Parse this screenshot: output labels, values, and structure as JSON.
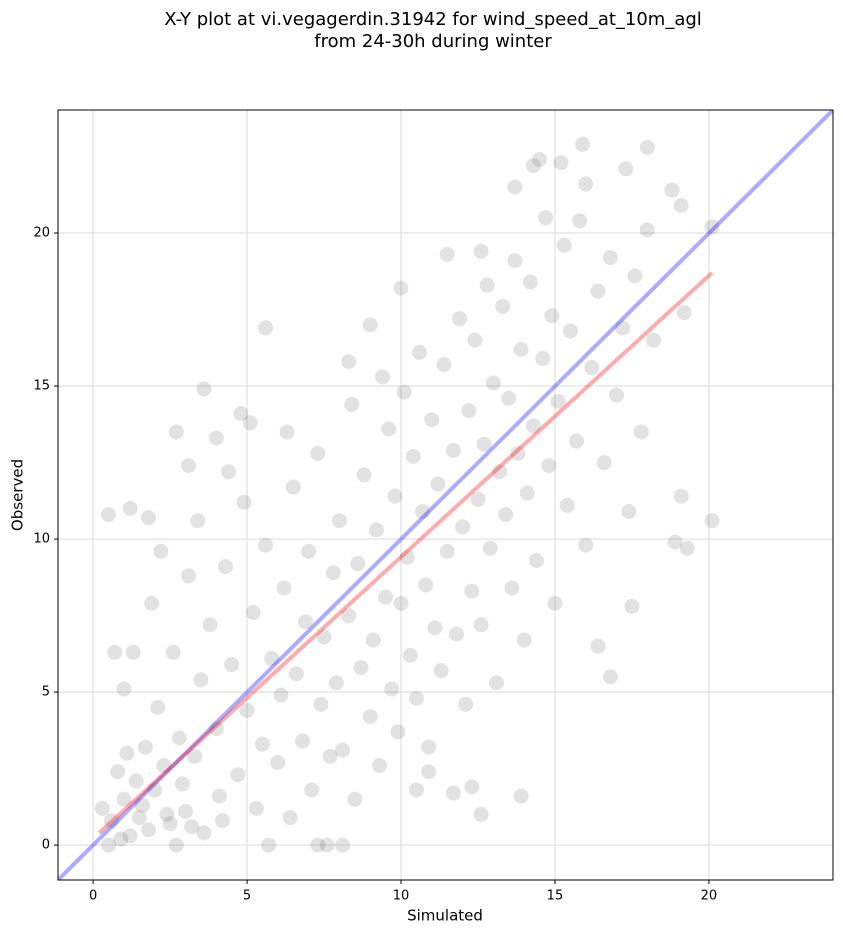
{
  "chart_data": {
    "type": "scatter",
    "title": [
      "X-Y plot at vi.vegagerdin.31942 for wind_speed_at_10m_agl",
      "from 24-30h during winter"
    ],
    "xlabel": "Simulated",
    "ylabel": "Observed",
    "xlim": [
      -1.14,
      24.03
    ],
    "ylim": [
      -1.14,
      24.02
    ],
    "xticks": [
      0,
      5,
      10,
      15,
      20
    ],
    "yticks": [
      0,
      5,
      10,
      15,
      20
    ],
    "grid": true,
    "color": "#555555",
    "x": [
      0.5,
      1.2,
      1.8,
      2.7,
      3.1,
      3.6,
      4,
      4.8,
      5.1,
      5.6,
      6.3,
      8.3,
      9,
      10,
      11.5,
      12.6,
      13.7,
      14.3,
      14.5,
      15.2,
      15.9,
      16,
      17.3,
      18,
      18.8,
      19.1,
      20.1,
      19.2,
      19.1,
      18.9,
      19.3,
      20.1,
      17.5,
      16.8,
      16.4,
      13.9,
      12.6,
      12.3,
      10.9,
      11.7,
      7.3,
      7.6,
      8.1,
      5.7,
      0.5,
      2.7,
      10.5,
      0.3,
      0.6,
      0.8,
      1,
      1.2,
      1.4,
      1.5,
      1.7,
      1.8,
      2,
      2.1,
      2.3,
      2.5,
      2.6,
      2.8,
      3,
      3.1,
      3.3,
      3.5,
      3.6,
      3.8,
      4,
      4.1,
      4.3,
      4.5,
      4.7,
      4.9,
      5,
      5.2,
      5.3,
      5.5,
      5.6,
      5.8,
      6,
      6.1,
      6.2,
      6.4,
      6.5,
      6.6,
      6.8,
      6.9,
      7,
      7.1,
      7.3,
      7.4,
      7.5,
      7.7,
      7.8,
      7.9,
      8,
      8.1,
      8.3,
      8.4,
      8.5,
      8.6,
      8.7,
      8.8,
      9,
      9.1,
      9.2,
      9.3,
      9.4,
      9.5,
      9.6,
      9.7,
      9.8,
      9.9,
      10,
      10.1,
      10.2,
      10.3,
      10.4,
      10.5,
      10.6,
      10.7,
      10.8,
      10.9,
      11,
      11.1,
      11.2,
      11.3,
      11.4,
      11.5,
      11.7,
      11.8,
      11.9,
      12,
      12.1,
      12.2,
      12.3,
      12.4,
      12.5,
      12.6,
      12.7,
      12.8,
      12.9,
      13,
      13.1,
      13.2,
      13.3,
      13.4,
      13.5,
      13.6,
      13.7,
      13.8,
      13.9,
      14,
      14.1,
      14.2,
      14.3,
      14.4,
      14.6,
      14.7,
      14.8,
      14.9,
      15,
      15.1,
      15.3,
      15.4,
      15.5,
      15.7,
      15.8,
      16,
      16.2,
      16.4,
      16.6,
      16.8,
      17,
      17.2,
      17.4,
      17.6,
      17.8,
      18,
      18.2,
      2.2,
      1.9,
      3.4,
      1,
      0.7,
      1.3,
      4.4,
      0.9,
      1.6,
      2.4,
      3.2,
      4.2,
      1.1,
      2.9
    ],
    "y": [
      10.8,
      11,
      10.7,
      13.5,
      12.4,
      14.9,
      13.3,
      14.1,
      13.8,
      16.9,
      13.5,
      15.8,
      17,
      18.2,
      19.3,
      19.4,
      21.5,
      22.2,
      22.4,
      22.3,
      22.9,
      21.6,
      22.1,
      22.8,
      21.4,
      20.9,
      20.2,
      17.4,
      11.4,
      9.9,
      9.7,
      10.6,
      7.8,
      5.5,
      6.5,
      1.6,
      1,
      1.9,
      2.4,
      1.7,
      0,
      0,
      0,
      0,
      0,
      0,
      1.8,
      1.2,
      0.8,
      2.4,
      1.5,
      0.3,
      2.1,
      0.9,
      3.2,
      0.5,
      1.8,
      4.5,
      2.6,
      0.7,
      6.3,
      3.5,
      1.1,
      8.8,
      2.9,
      5.4,
      0.4,
      7.2,
      3.8,
      1.6,
      9.1,
      5.9,
      2.3,
      11.2,
      4.4,
      7.6,
      1.2,
      3.3,
      9.8,
      6.1,
      2.7,
      4.9,
      8.4,
      0.9,
      11.7,
      5.6,
      3.4,
      7.3,
      9.6,
      1.8,
      12.8,
      4.6,
      6.8,
      2.9,
      8.9,
      5.3,
      10.6,
      3.1,
      7.5,
      14.4,
      1.5,
      9.2,
      5.8,
      12.1,
      4.2,
      6.7,
      10.3,
      2.6,
      15.3,
      8.1,
      13.6,
      5.1,
      11.4,
      3.7,
      7.9,
      14.8,
      9.4,
      6.2,
      12.7,
      4.8,
      16.1,
      10.9,
      8.5,
      3.2,
      13.9,
      7.1,
      11.8,
      5.7,
      15.7,
      9.6,
      12.9,
      6.9,
      17.2,
      10.4,
      4.6,
      14.2,
      8.3,
      16.5,
      11.3,
      7.2,
      13.1,
      18.3,
      9.7,
      15.1,
      5.3,
      12.2,
      17.6,
      10.8,
      14.6,
      8.4,
      19.1,
      12.8,
      16.2,
      6.7,
      11.5,
      18.4,
      13.7,
      9.3,
      15.9,
      20.5,
      12.4,
      17.3,
      7.9,
      14.5,
      19.6,
      11.1,
      16.8,
      13.2,
      20.4,
      9.8,
      15.6,
      18.1,
      12.5,
      19.2,
      14.7,
      16.9,
      10.9,
      18.6,
      13.5,
      20.1,
      16.5,
      9.6,
      7.9,
      10.6,
      5.1,
      6.3,
      6.3,
      12.2,
      0.2,
      1.3,
      1,
      0.6,
      0.8,
      3,
      2
    ],
    "lines": [
      {
        "x": [
          -1.14,
          24.03
        ],
        "y": [
          -1.14,
          24.02
        ],
        "color": "#0000ff"
      },
      {
        "x": [
          0.2,
          20.1
        ],
        "y": [
          0.4,
          18.7
        ],
        "color": "#ff0000"
      }
    ]
  }
}
